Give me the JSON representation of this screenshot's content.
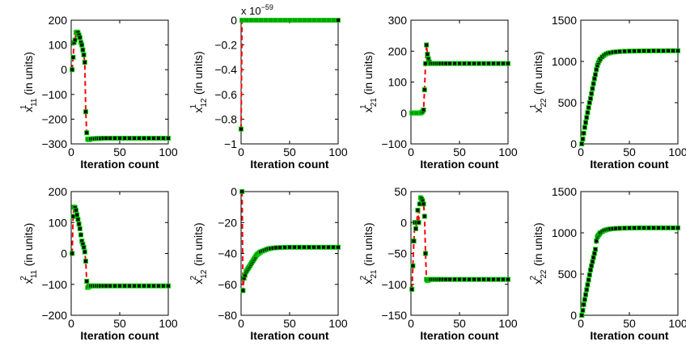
{
  "chart_data": [
    {
      "type": "scatter",
      "ylabel_base": "x",
      "ylabel_sup": "1",
      "ylabel_sub": "11",
      "ylabel_tail": "(in units)",
      "xlabel": "Iteration count",
      "xlim": [
        0,
        100
      ],
      "ylim": [
        -300,
        200
      ],
      "xticks": [
        0,
        50,
        100
      ],
      "yticks": [
        200,
        100,
        0,
        -100,
        -200,
        -300
      ],
      "ytick_labels": [
        "200",
        "100",
        "0",
        "−100",
        "−200",
        "−300"
      ],
      "exponent_label": "",
      "x": [
        1,
        2,
        3,
        4,
        5,
        6,
        7,
        8,
        9,
        10,
        11,
        12,
        13,
        14,
        15,
        16,
        17,
        18,
        19,
        20,
        22,
        24,
        26,
        28,
        30,
        33,
        36,
        40,
        45,
        50,
        55,
        60,
        65,
        70,
        75,
        80,
        85,
        90,
        95,
        100
      ],
      "y": [
        0,
        50,
        110,
        120,
        150,
        152,
        150,
        140,
        130,
        110,
        100,
        80,
        60,
        30,
        -170,
        -255,
        -280,
        -283,
        -282,
        -280,
        -279,
        -279,
        -278,
        -278,
        -278,
        -277,
        -277,
        -277,
        -277,
        -277,
        -277,
        -277,
        -277,
        -277,
        -277,
        -277,
        -277,
        -277,
        -277,
        -277
      ]
    },
    {
      "type": "scatter",
      "ylabel_base": "x",
      "ylabel_sup": "1",
      "ylabel_sub": "12",
      "ylabel_tail": "(in units)",
      "xlabel": "Iteration count",
      "xlim": [
        0,
        100
      ],
      "ylim": [
        -1,
        0
      ],
      "xticks": [
        0,
        50,
        100
      ],
      "yticks": [
        0,
        -0.2,
        -0.4,
        -0.6,
        -0.8,
        -1
      ],
      "ytick_labels": [
        "0",
        "−0.2",
        "−0.4",
        "−0.6",
        "−0.8",
        "−1"
      ],
      "exponent_label": "x 10",
      "exponent_power": "−59",
      "x": [
        0,
        1,
        2,
        3,
        4,
        5,
        6,
        7,
        8,
        9,
        10,
        11,
        12,
        13,
        14,
        15,
        16,
        17,
        18,
        19,
        20,
        21,
        22,
        23,
        24,
        25,
        26,
        27,
        28,
        29,
        30,
        31,
        32,
        33,
        34,
        35,
        36,
        37,
        38,
        39,
        40,
        41,
        42,
        43,
        44,
        45,
        46,
        47,
        48,
        49,
        50,
        51,
        52,
        53,
        54,
        55,
        56,
        57,
        58,
        59,
        60,
        61,
        62,
        63,
        64,
        65,
        66,
        67,
        68,
        69,
        70,
        71,
        72,
        73,
        74,
        75,
        76,
        77,
        78,
        79,
        80,
        81,
        82,
        83,
        84,
        85,
        86,
        87,
        88,
        89,
        90,
        91,
        92,
        93,
        94,
        95,
        96,
        97,
        98,
        99,
        100
      ],
      "y": [
        -0.88,
        0,
        0,
        0,
        0,
        0,
        0,
        0,
        0,
        0,
        0,
        0,
        0,
        0,
        0,
        0,
        0,
        0,
        0,
        0,
        0,
        0,
        0,
        0,
        0,
        0,
        0,
        0,
        0,
        0,
        0,
        0,
        0,
        0,
        0,
        0,
        0,
        0,
        0,
        0,
        0,
        0,
        0,
        0,
        0,
        0,
        0,
        0,
        0,
        0,
        0,
        0,
        0,
        0,
        0,
        0,
        0,
        0,
        0,
        0,
        0,
        0,
        0,
        0,
        0,
        0,
        0,
        0,
        0,
        0,
        0,
        0,
        0,
        0,
        0,
        0,
        0,
        0,
        0,
        0,
        0,
        0,
        0,
        0,
        0,
        0,
        0,
        0,
        0,
        0,
        0,
        0,
        0,
        0,
        0,
        0,
        0,
        0,
        0,
        0,
        0
      ]
    },
    {
      "type": "scatter",
      "ylabel_base": "x",
      "ylabel_sup": "1",
      "ylabel_sub": "21",
      "ylabel_tail": "(in units)",
      "xlabel": "Iteration count",
      "xlim": [
        0,
        100
      ],
      "ylim": [
        -100,
        300
      ],
      "xticks": [
        0,
        50,
        100
      ],
      "yticks": [
        300,
        200,
        100,
        0,
        -100
      ],
      "ytick_labels": [
        "300",
        "200",
        "100",
        "0",
        "−100"
      ],
      "exponent_label": "",
      "x": [
        1,
        2,
        3,
        4,
        5,
        6,
        7,
        8,
        9,
        10,
        11,
        12,
        13,
        14,
        15,
        16,
        17,
        18,
        19,
        20,
        22,
        24,
        26,
        28,
        30,
        33,
        36,
        40,
        45,
        50,
        55,
        60,
        65,
        70,
        75,
        80,
        85,
        90,
        95,
        100
      ],
      "y": [
        0,
        0,
        0,
        0,
        0,
        0,
        0,
        0,
        0,
        0,
        2,
        5,
        10,
        75,
        160,
        220,
        190,
        175,
        165,
        160,
        160,
        160,
        160,
        160,
        160,
        160,
        160,
        160,
        160,
        160,
        160,
        160,
        160,
        160,
        160,
        160,
        160,
        160,
        160,
        160
      ]
    },
    {
      "type": "scatter",
      "ylabel_base": "x",
      "ylabel_sup": "1",
      "ylabel_sub": "22",
      "ylabel_tail": "(in units)",
      "xlabel": "Iteration count",
      "xlim": [
        0,
        100
      ],
      "ylim": [
        0,
        1500
      ],
      "xticks": [
        0,
        50,
        100
      ],
      "yticks": [
        1500,
        1000,
        500,
        0
      ],
      "ytick_labels": [
        "1500",
        "1000",
        "500",
        "0"
      ],
      "exponent_label": "",
      "x": [
        1,
        2,
        3,
        4,
        5,
        6,
        7,
        8,
        9,
        10,
        11,
        12,
        13,
        14,
        15,
        16,
        17,
        18,
        19,
        20,
        22,
        24,
        26,
        28,
        30,
        33,
        36,
        40,
        45,
        50,
        55,
        60,
        65,
        70,
        75,
        80,
        85,
        90,
        95,
        100
      ],
      "y": [
        0,
        60,
        130,
        200,
        260,
        320,
        380,
        440,
        500,
        550,
        610,
        670,
        730,
        790,
        840,
        900,
        950,
        985,
        1010,
        1030,
        1055,
        1075,
        1090,
        1100,
        1105,
        1112,
        1116,
        1120,
        1123,
        1125,
        1126,
        1127,
        1128,
        1128,
        1129,
        1129,
        1129,
        1130,
        1130,
        1130
      ]
    },
    {
      "type": "scatter",
      "ylabel_base": "x",
      "ylabel_sup": "2",
      "ylabel_sub": "11",
      "ylabel_tail": "(in units)",
      "xlabel": "Iteration count",
      "xlim": [
        0,
        100
      ],
      "ylim": [
        -200,
        200
      ],
      "xticks": [
        0,
        50,
        100
      ],
      "yticks": [
        200,
        100,
        0,
        -100,
        -200
      ],
      "ytick_labels": [
        "200",
        "100",
        "0",
        "−100",
        "−200"
      ],
      "exponent_label": "",
      "x": [
        1,
        2,
        3,
        4,
        5,
        6,
        7,
        8,
        9,
        10,
        11,
        12,
        13,
        14,
        15,
        16,
        17,
        18,
        19,
        20,
        22,
        24,
        26,
        28,
        30,
        33,
        36,
        40,
        45,
        50,
        55,
        60,
        65,
        70,
        75,
        80,
        85,
        90,
        95,
        100
      ],
      "y": [
        0,
        120,
        150,
        148,
        140,
        125,
        110,
        95,
        80,
        60,
        40,
        30,
        20,
        5,
        -25,
        -90,
        -110,
        -108,
        -106,
        -105,
        -105,
        -105,
        -105,
        -105,
        -105,
        -105,
        -105,
        -105,
        -105,
        -105,
        -105,
        -105,
        -105,
        -105,
        -105,
        -105,
        -105,
        -105,
        -105,
        -105
      ]
    },
    {
      "type": "scatter",
      "ylabel_base": "x",
      "ylabel_sup": "2",
      "ylabel_sub": "12",
      "ylabel_tail": "(in units)",
      "xlabel": "Iteration count",
      "xlim": [
        0,
        100
      ],
      "ylim": [
        -80,
        0
      ],
      "xticks": [
        0,
        50,
        100
      ],
      "yticks": [
        0,
        -20,
        -40,
        -60,
        -80
      ],
      "ytick_labels": [
        "0",
        "−20",
        "−40",
        "−60",
        "−80"
      ],
      "exponent_label": "",
      "x": [
        1,
        2,
        3,
        4,
        5,
        6,
        7,
        8,
        9,
        10,
        11,
        12,
        13,
        14,
        15,
        16,
        17,
        18,
        19,
        20,
        22,
        24,
        26,
        28,
        30,
        33,
        36,
        40,
        45,
        50,
        55,
        60,
        65,
        70,
        75,
        80,
        85,
        90,
        95,
        100
      ],
      "y": [
        0,
        -64,
        -56,
        -54,
        -52,
        -51,
        -50,
        -49,
        -48,
        -47,
        -46,
        -45,
        -44,
        -43,
        -42,
        -41,
        -40.5,
        -40,
        -39.5,
        -39,
        -38.5,
        -38,
        -37.5,
        -37,
        -36.8,
        -36.5,
        -36.3,
        -36.2,
        -36.1,
        -36,
        -36,
        -36,
        -36,
        -36,
        -36,
        -36,
        -36,
        -36,
        -36,
        -36
      ]
    },
    {
      "type": "scatter",
      "ylabel_base": "x",
      "ylabel_sup": "2",
      "ylabel_sub": "21",
      "ylabel_tail": "(in units)",
      "xlabel": "Iteration count",
      "xlim": [
        0,
        100
      ],
      "ylim": [
        -150,
        50
      ],
      "xticks": [
        0,
        50,
        100
      ],
      "yticks": [
        50,
        0,
        -50,
        -100,
        -150
      ],
      "ytick_labels": [
        "50",
        "0",
        "−50",
        "−100",
        "−150"
      ],
      "exponent_label": "",
      "x": [
        1,
        2,
        3,
        4,
        5,
        6,
        7,
        8,
        9,
        10,
        11,
        12,
        13,
        14,
        15,
        16,
        17,
        18,
        19,
        20,
        22,
        24,
        26,
        28,
        30,
        33,
        36,
        40,
        45,
        50,
        55,
        60,
        65,
        70,
        75,
        80,
        85,
        90,
        95,
        100
      ],
      "y": [
        -108,
        -70,
        -30,
        0,
        -10,
        0,
        20,
        0,
        30,
        40,
        38,
        35,
        30,
        10,
        -50,
        -92,
        -94,
        -93,
        -92,
        -92,
        -92,
        -92,
        -92,
        -92,
        -92,
        -92,
        -92,
        -92,
        -92,
        -92,
        -92,
        -92,
        -92,
        -92,
        -92,
        -92,
        -92,
        -92,
        -92,
        -92
      ]
    },
    {
      "type": "scatter",
      "ylabel_base": "x",
      "ylabel_sup": "2",
      "ylabel_sub": "22",
      "ylabel_tail": "(in units)",
      "xlabel": "Iteration count",
      "xlim": [
        0,
        100
      ],
      "ylim": [
        0,
        1500
      ],
      "xticks": [
        0,
        50,
        100
      ],
      "yticks": [
        1500,
        1000,
        500,
        0
      ],
      "ytick_labels": [
        "1500",
        "1000",
        "500",
        "0"
      ],
      "exponent_label": "",
      "x": [
        1,
        2,
        3,
        4,
        5,
        6,
        7,
        8,
        9,
        10,
        11,
        12,
        13,
        14,
        15,
        16,
        17,
        18,
        19,
        20,
        22,
        24,
        26,
        28,
        30,
        33,
        36,
        40,
        45,
        50,
        55,
        60,
        65,
        70,
        75,
        80,
        85,
        90,
        95,
        100
      ],
      "y": [
        0,
        60,
        130,
        190,
        250,
        310,
        370,
        430,
        490,
        550,
        600,
        650,
        700,
        750,
        800,
        900,
        950,
        970,
        985,
        1000,
        1015,
        1028,
        1035,
        1042,
        1046,
        1050,
        1053,
        1055,
        1057,
        1058,
        1059,
        1060,
        1060,
        1060,
        1060,
        1060,
        1060,
        1060,
        1060,
        1060
      ]
    }
  ],
  "colors": {
    "line": "#ff0000",
    "marker_face": "#000000",
    "marker_edge": "#00cc00"
  }
}
